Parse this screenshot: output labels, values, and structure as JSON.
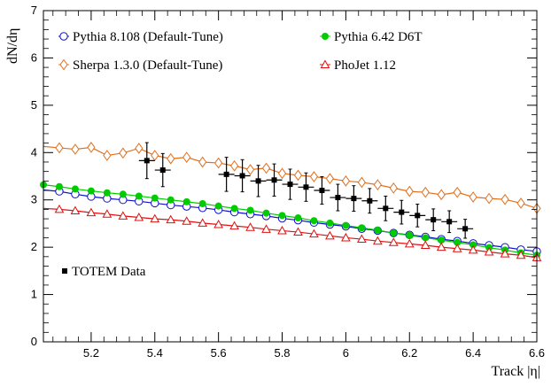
{
  "chart_data": {
    "type": "line",
    "title": "",
    "xlabel": "Track |η|",
    "ylabel": "dN/dη",
    "xlim": [
      5.05,
      6.6
    ],
    "ylim": [
      0,
      7
    ],
    "x_ticks": [
      5.2,
      5.4,
      5.6,
      5.8,
      6,
      6.2,
      6.4,
      6.6
    ],
    "x_tick_labels": [
      "5.2",
      "5.4",
      "5.6",
      "5.8",
      "6",
      "6.2",
      "6.4",
      "6.6"
    ],
    "y_ticks": [
      0,
      1,
      2,
      3,
      4,
      5,
      6,
      7
    ],
    "y_tick_labels": [
      "0",
      "1",
      "2",
      "3",
      "4",
      "5",
      "6",
      "7"
    ],
    "grid": false,
    "series": [
      {
        "name": "Pythia 8.108 (Default-Tune)",
        "marker": "open-circle",
        "color": "#1010c8",
        "x": [
          5.05,
          5.1,
          5.15,
          5.2,
          5.25,
          5.3,
          5.35,
          5.4,
          5.45,
          5.5,
          5.55,
          5.6,
          5.65,
          5.7,
          5.75,
          5.8,
          5.85,
          5.9,
          5.95,
          6.0,
          6.05,
          6.1,
          6.15,
          6.2,
          6.25,
          6.3,
          6.35,
          6.4,
          6.45,
          6.5,
          6.55,
          6.6
        ],
        "y": [
          3.21,
          3.18,
          3.12,
          3.07,
          3.03,
          3.0,
          2.97,
          2.93,
          2.89,
          2.86,
          2.83,
          2.79,
          2.74,
          2.7,
          2.66,
          2.61,
          2.57,
          2.52,
          2.48,
          2.44,
          2.39,
          2.35,
          2.3,
          2.26,
          2.22,
          2.17,
          2.13,
          2.08,
          2.04,
          2.0,
          1.95,
          1.91
        ]
      },
      {
        "name": "Pythia 6.42 D6T",
        "marker": "filled-circle",
        "color": "#00cc00",
        "x": [
          5.05,
          5.1,
          5.15,
          5.2,
          5.25,
          5.3,
          5.35,
          5.4,
          5.45,
          5.5,
          5.55,
          5.6,
          5.65,
          5.7,
          5.75,
          5.8,
          5.85,
          5.9,
          5.95,
          6.0,
          6.05,
          6.1,
          6.15,
          6.2,
          6.25,
          6.3,
          6.35,
          6.4,
          6.45,
          6.5,
          6.55,
          6.6
        ],
        "y": [
          3.32,
          3.28,
          3.23,
          3.19,
          3.15,
          3.12,
          3.08,
          3.04,
          3.0,
          2.96,
          2.92,
          2.87,
          2.82,
          2.78,
          2.72,
          2.67,
          2.62,
          2.56,
          2.51,
          2.46,
          2.41,
          2.36,
          2.3,
          2.25,
          2.2,
          2.15,
          2.1,
          2.05,
          1.99,
          1.94,
          1.88,
          1.83
        ]
      },
      {
        "name": "Sherpa 1.3.0 (Default-Tune)",
        "marker": "open-diamond",
        "color": "#e0701f",
        "x": [
          5.05,
          5.1,
          5.15,
          5.2,
          5.25,
          5.3,
          5.35,
          5.4,
          5.45,
          5.5,
          5.55,
          5.6,
          5.65,
          5.7,
          5.75,
          5.8,
          5.85,
          5.9,
          5.95,
          6.0,
          6.05,
          6.1,
          6.15,
          6.2,
          6.25,
          6.3,
          6.35,
          6.4,
          6.45,
          6.5,
          6.55,
          6.6
        ],
        "y": [
          4.13,
          4.1,
          4.07,
          4.11,
          3.94,
          3.99,
          4.09,
          3.94,
          3.87,
          3.9,
          3.8,
          3.78,
          3.72,
          3.64,
          3.67,
          3.56,
          3.52,
          3.49,
          3.45,
          3.4,
          3.37,
          3.32,
          3.25,
          3.18,
          3.16,
          3.11,
          3.16,
          3.06,
          3.03,
          3.01,
          2.93,
          2.82
        ]
      },
      {
        "name": "PhoJet 1.12",
        "marker": "open-triangle",
        "color": "#e01010",
        "x": [
          5.05,
          5.1,
          5.15,
          5.2,
          5.25,
          5.3,
          5.35,
          5.4,
          5.45,
          5.5,
          5.55,
          5.6,
          5.65,
          5.7,
          5.75,
          5.8,
          5.85,
          5.9,
          5.95,
          6.0,
          6.05,
          6.1,
          6.15,
          6.2,
          6.25,
          6.3,
          6.35,
          6.4,
          6.45,
          6.5,
          6.55,
          6.6
        ],
        "y": [
          2.82,
          2.8,
          2.77,
          2.73,
          2.7,
          2.66,
          2.63,
          2.6,
          2.58,
          2.55,
          2.51,
          2.48,
          2.45,
          2.42,
          2.38,
          2.35,
          2.32,
          2.28,
          2.24,
          2.2,
          2.17,
          2.13,
          2.1,
          2.07,
          2.04,
          2.0,
          1.97,
          1.94,
          1.9,
          1.86,
          1.83,
          1.78
        ]
      },
      {
        "name": "TOTEM Data",
        "marker": "filled-square",
        "color": "#000000",
        "x": [
          5.375,
          5.425,
          5.625,
          5.675,
          5.725,
          5.775,
          5.825,
          5.875,
          5.925,
          5.975,
          6.025,
          6.075,
          6.125,
          6.175,
          6.225,
          6.275,
          6.325,
          6.375
        ],
        "y": [
          3.83,
          3.63,
          3.54,
          3.51,
          3.4,
          3.42,
          3.33,
          3.27,
          3.2,
          3.05,
          3.03,
          2.98,
          2.82,
          2.74,
          2.67,
          2.58,
          2.54,
          2.39
        ],
        "yerr": [
          0.38,
          0.35,
          0.36,
          0.34,
          0.33,
          0.34,
          0.32,
          0.3,
          0.29,
          0.28,
          0.27,
          0.26,
          0.26,
          0.25,
          0.24,
          0.23,
          0.23,
          0.2
        ],
        "xerr": 0.025
      }
    ],
    "legend": [
      {
        "label": "Pythia 8.108 (Default-Tune)",
        "series": 0,
        "position": "top-left"
      },
      {
        "label": "Pythia 6.42 D6T",
        "series": 1,
        "position": "top-right"
      },
      {
        "label": "Sherpa 1.3.0 (Default-Tune)",
        "series": 2,
        "position": "top-left"
      },
      {
        "label": "PhoJet 1.12",
        "series": 3,
        "position": "top-right"
      },
      {
        "label": "TOTEM Data",
        "series": 4,
        "position": "left"
      }
    ]
  }
}
